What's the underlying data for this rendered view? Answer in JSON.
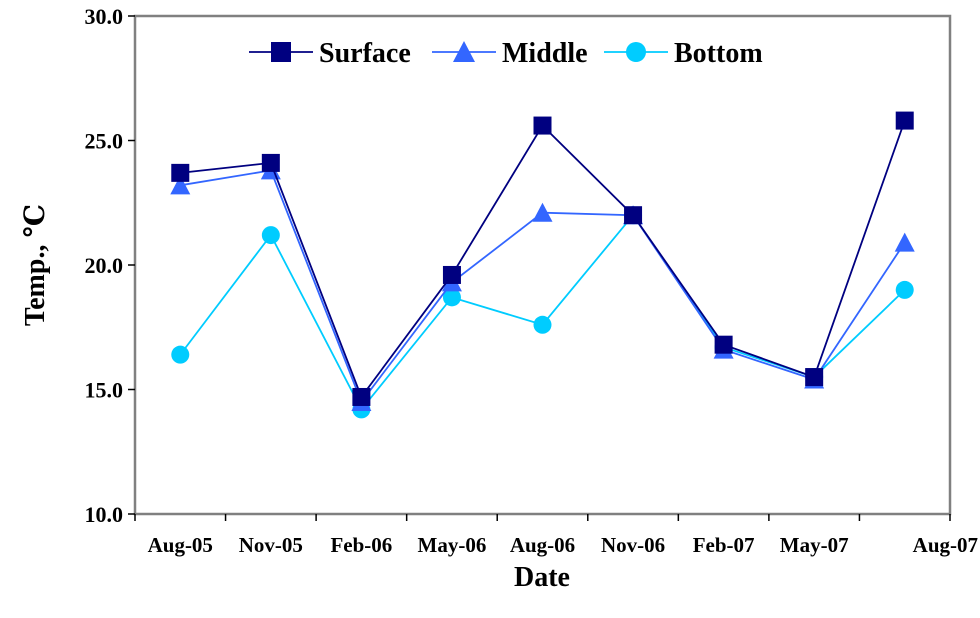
{
  "chart_data": {
    "type": "line",
    "xlabel": "Date",
    "ylabel": "Temp., ℃",
    "ylim": [
      10.0,
      30.0
    ],
    "yticks": [
      "10.0",
      "15.0",
      "20.0",
      "25.0",
      "30.0"
    ],
    "categories": [
      "Aug-05",
      "Nov-05",
      "Feb-06",
      "May-06",
      "Aug-06",
      "Nov-06",
      "Feb-07",
      "May-07",
      "Aug-07"
    ],
    "grid": false,
    "legend_position": "top",
    "series": [
      {
        "name": "Surface",
        "marker": "square",
        "color": "#000080",
        "values": [
          23.7,
          24.1,
          14.7,
          19.6,
          25.6,
          22.0,
          16.8,
          15.5,
          25.8
        ]
      },
      {
        "name": "Middle",
        "marker": "triangle",
        "color": "#3366FF",
        "values": [
          23.2,
          23.8,
          14.5,
          19.3,
          22.1,
          22.0,
          16.6,
          15.4,
          20.9
        ]
      },
      {
        "name": "Bottom",
        "marker": "circle",
        "color": "#00CCFF",
        "values": [
          16.4,
          21.2,
          14.2,
          18.7,
          17.6,
          22.0,
          16.7,
          15.5,
          19.0
        ]
      }
    ]
  }
}
